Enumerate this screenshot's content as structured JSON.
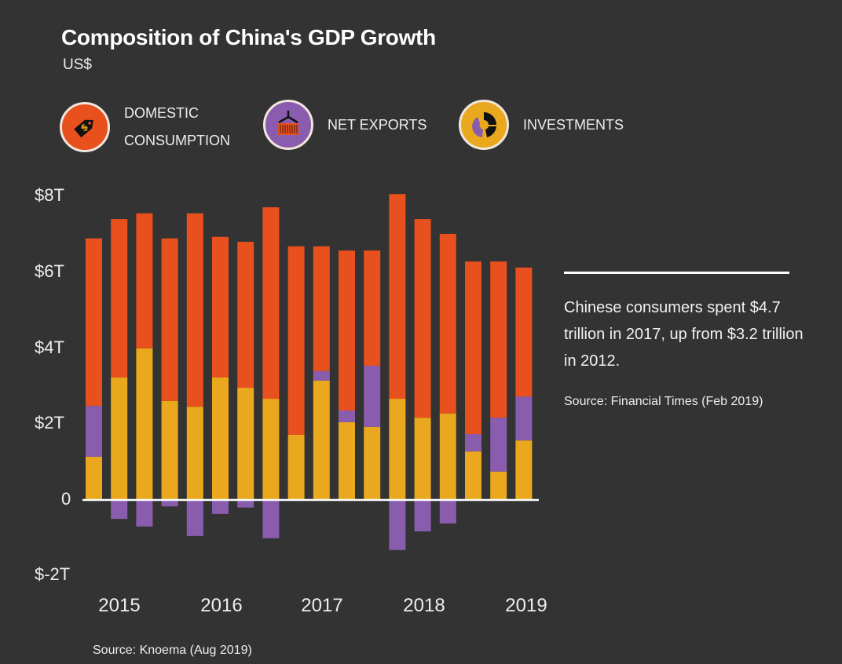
{
  "chart_data": {
    "type": "bar",
    "stacked": true,
    "title": "Composition of China's GDP Growth",
    "subtitle": "US$",
    "ylim": [
      -2,
      8
    ],
    "yticks": [
      "$8T",
      "$6T",
      "$4T",
      "$2T",
      "0",
      "$-2T"
    ],
    "ytick_values": [
      8,
      6,
      4,
      2,
      0,
      -2
    ],
    "xticks": [
      "2015",
      "2016",
      "2017",
      "2018",
      "2019"
    ],
    "legend_position": "top",
    "series": [
      {
        "name": "INVESTMENTS",
        "color": "#e9a81d",
        "icon": "pie-chart-icon",
        "values": [
          1.14,
          3.23,
          4.0,
          2.61,
          2.46,
          3.23,
          2.96,
          2.67,
          1.72,
          3.15,
          2.05,
          1.93,
          2.67,
          2.17,
          2.28,
          1.28,
          0.75,
          1.57
        ]
      },
      {
        "name": "NET EXPORTS",
        "color": "#8a5cad",
        "icon": "shipping-container-icon",
        "values": [
          1.34,
          -0.5,
          -0.7,
          -0.17,
          -0.95,
          -0.37,
          -0.2,
          -1.01,
          0,
          0.25,
          0.31,
          1.61,
          -1.32,
          -0.83,
          -0.62,
          0.46,
          1.42,
          1.16
        ]
      },
      {
        "name": "DOMESTIC CONSUMPTION",
        "color": "#e8501e",
        "icon": "price-tag-icon",
        "values": [
          4.42,
          4.18,
          3.56,
          4.29,
          5.1,
          3.71,
          3.85,
          5.05,
          4.97,
          3.29,
          4.22,
          3.04,
          5.4,
          5.24,
          4.74,
          4.55,
          4.12,
          3.4
        ]
      }
    ],
    "grid": false
  },
  "legend": {
    "domestic": "DOMESTIC CONSUMPTION",
    "net_exports": "NET EXPORTS",
    "investments": "INVESTMENTS"
  },
  "annotation": {
    "text": "Chinese consumers spent $4.7 trillion in 2017, up from $3.2 trillion in 2012.",
    "source": "Source: Financial Times (Feb 2019)"
  },
  "source": "Source: Knoema (Aug 2019)"
}
